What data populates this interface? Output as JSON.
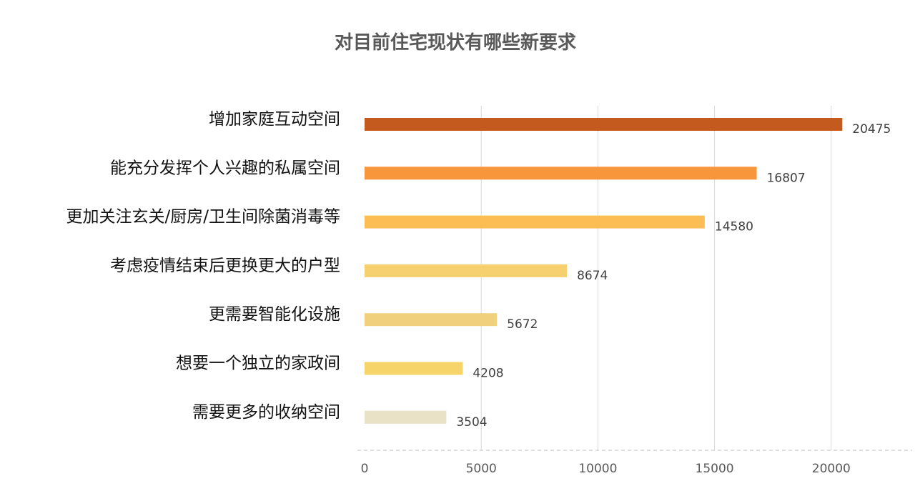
{
  "chart_data": {
    "type": "bar",
    "orientation": "horizontal",
    "title": "对目前住宅现状有哪些新要求",
    "categories": [
      "增加家庭互动空间",
      "能充分发挥个人兴趣的私属空间",
      "更加关注玄关/厨房/卫生间除菌消毒等",
      "考虑疫情结束后更换更大的户型",
      "更需要智能化设施",
      "想要一个独立的家政间",
      "需要更多的收纳空间"
    ],
    "values": [
      20475,
      16807,
      14580,
      8674,
      5672,
      4208,
      3504
    ],
    "bar_colors": [
      "#C55A1E",
      "#F7963A",
      "#FCBE54",
      "#F6D06E",
      "#F0D07C",
      "#F6D46A",
      "#EAE2C6"
    ],
    "xlim": [
      0,
      23000
    ],
    "xticks": [
      "0",
      "5000",
      "10000",
      "15000",
      "20000"
    ],
    "grid": true,
    "legend": "none"
  }
}
